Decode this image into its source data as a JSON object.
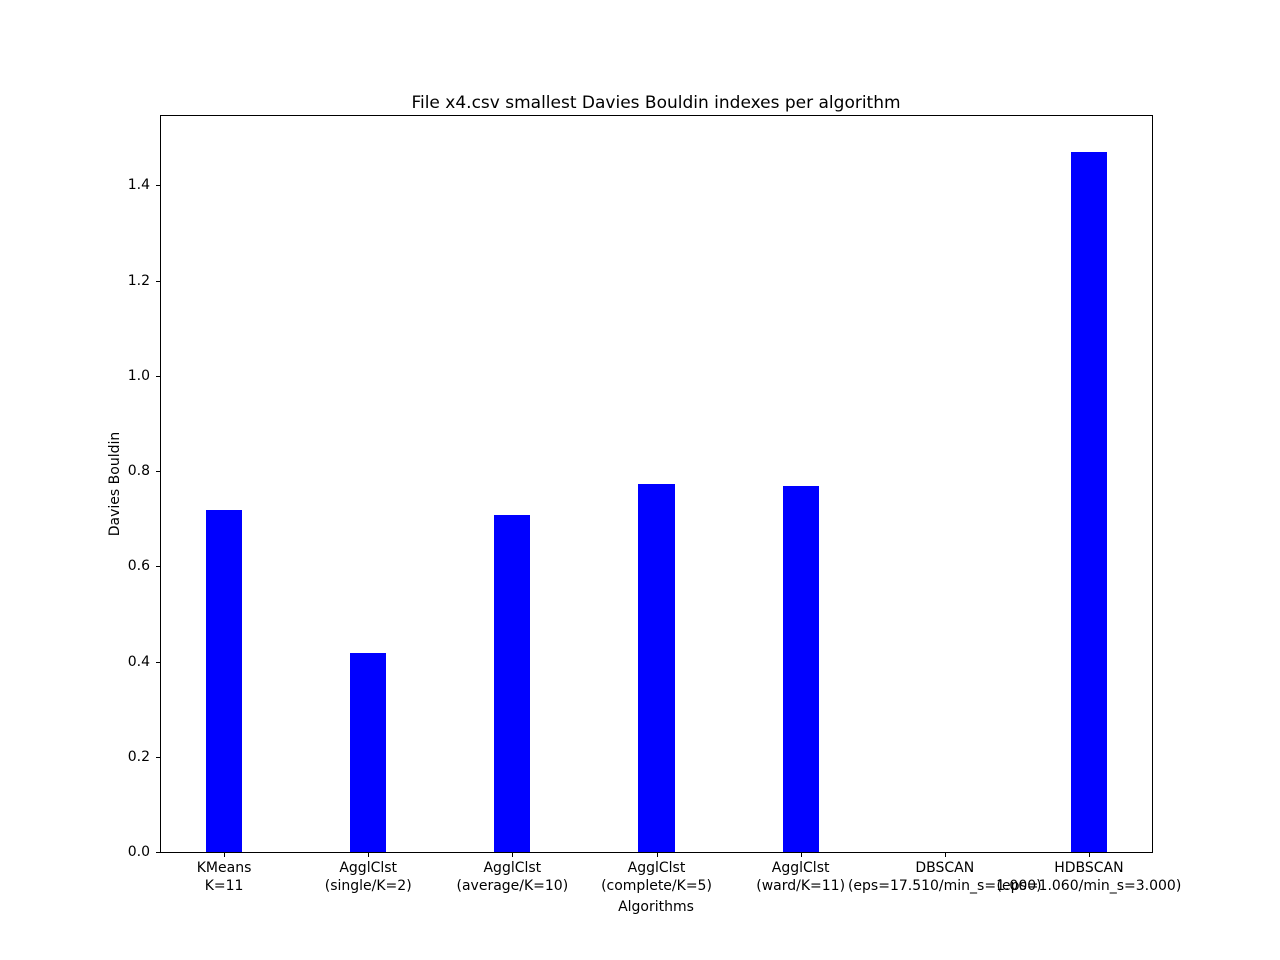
{
  "chart_data": {
    "type": "bar",
    "title": "File x4.csv smallest Davies Bouldin indexes per algorithm",
    "xlabel": "Algorithms",
    "ylabel": "Davies Bouldin",
    "categories": [
      [
        "KMeans",
        "K=11"
      ],
      [
        "AgglClst",
        "(single/K=2)"
      ],
      [
        "AgglClst",
        "(average/K=10)"
      ],
      [
        "AgglClst",
        "(complete/K=5)"
      ],
      [
        "AgglClst",
        "(ward/K=11)"
      ],
      [
        "DBSCAN",
        "(eps=17.510/min_s=1.000)"
      ],
      [
        "HDBSCAN",
        "(eps=1.060/min_s=3.000)"
      ]
    ],
    "values": [
      0.719,
      0.417,
      0.707,
      0.773,
      0.769,
      0.0,
      1.47
    ],
    "bar_color": "#0000ff",
    "yticks": [
      0.0,
      0.2,
      0.4,
      0.6,
      0.8,
      1.0,
      1.2,
      1.4
    ],
    "ytick_format_decimals": 1,
    "ylim": [
      0,
      1.5455
    ],
    "xlim": [
      -0.4375,
      6.4375
    ],
    "bar_width_units": 0.25,
    "grid": false,
    "legend_position": "none",
    "background_color": "#ffffff",
    "axis_color": "#000000"
  }
}
